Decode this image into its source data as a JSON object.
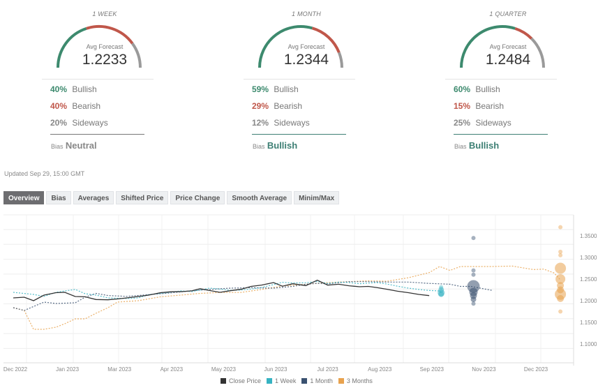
{
  "colors": {
    "bullish": "#3d8a6e",
    "bearish": "#c0574a",
    "sideways": "#9a9a9a",
    "close": "#333333",
    "week": "#36b3c2",
    "month": "#3a5170",
    "quarter": "#e8a24e"
  },
  "gauges": [
    {
      "period": "1 WEEK",
      "avg_label": "Avg Forecast",
      "avg_value": "1.2233",
      "bullish_pct": 40,
      "bearish_pct": 40,
      "sideways_pct": 20,
      "bullish_text": "40%",
      "bearish_text": "40%",
      "sideways_text": "20%",
      "bullish_label": "Bullish",
      "bearish_label": "Bearish",
      "sideways_label": "Sideways",
      "bias_label": "Bias",
      "bias_value": "Neutral",
      "bias_color": "#888888"
    },
    {
      "period": "1 MONTH",
      "avg_label": "Avg Forecast",
      "avg_value": "1.2344",
      "bullish_pct": 59,
      "bearish_pct": 29,
      "sideways_pct": 12,
      "bullish_text": "59%",
      "bearish_text": "29%",
      "sideways_text": "12%",
      "bullish_label": "Bullish",
      "bearish_label": "Bearish",
      "sideways_label": "Sideways",
      "bias_label": "Bias",
      "bias_value": "Bullish",
      "bias_color": "#3d7f74"
    },
    {
      "period": "1 QUARTER",
      "avg_label": "Avg Forecast",
      "avg_value": "1.2484",
      "bullish_pct": 60,
      "bearish_pct": 15,
      "sideways_pct": 25,
      "bullish_text": "60%",
      "bearish_text": "15%",
      "sideways_text": "25%",
      "bullish_label": "Bullish",
      "bearish_label": "Bearish",
      "sideways_label": "Sideways",
      "bias_label": "Bias",
      "bias_value": "Bullish",
      "bias_color": "#3d7f74"
    }
  ],
  "updated": "Updated Sep 29, 15:00 GMT",
  "tabs": [
    {
      "label": "Overview",
      "active": true
    },
    {
      "label": "Bias",
      "active": false
    },
    {
      "label": "Averages",
      "active": false
    },
    {
      "label": "Shifted Price",
      "active": false
    },
    {
      "label": "Price Change",
      "active": false
    },
    {
      "label": "Smooth Average",
      "active": false
    },
    {
      "label": "Minim/Max",
      "active": false
    }
  ],
  "chart_data": {
    "type": "line",
    "title": "",
    "xlabel": "",
    "ylabel": "",
    "x_ticks": [
      "Dec 2022",
      "Jan 2023",
      "Mar 2023",
      "Apr 2023",
      "May 2023",
      "Jun 2023",
      "Jul 2023",
      "Aug 2023",
      "Sep 2023",
      "Nov 2023",
      "Dec 2023"
    ],
    "y_ticks": [
      "1.1000",
      "1.1500",
      "1.2000",
      "1.2500",
      "1.3000",
      "1.3500"
    ],
    "y_tick_values": [
      1.1,
      1.15,
      1.2,
      1.25,
      1.3,
      1.35
    ],
    "ylim": [
      1.055,
      1.395
    ],
    "xlim": [
      -0.3,
      10.7
    ],
    "grid": true,
    "legend_position": "bottom",
    "legend": [
      "Close Price",
      "1 Week",
      "1 Month",
      "3 Months"
    ],
    "series": [
      {
        "name": "Close Price",
        "style": "solid",
        "color_key": "close",
        "x": [
          -0.04,
          0.17,
          0.35,
          0.55,
          0.78,
          0.95,
          1.15,
          1.34,
          1.55,
          1.78,
          1.96,
          2.14,
          2.36,
          2.56,
          2.79,
          2.99,
          3.19,
          3.39,
          3.55,
          3.73,
          3.93,
          4.13,
          4.33,
          4.53,
          4.73,
          4.96,
          5.13,
          5.33,
          5.58,
          5.8,
          6.0,
          6.21,
          6.41,
          6.61,
          6.78,
          6.94,
          7.14,
          7.34,
          7.55,
          7.75,
          7.95
        ],
        "y": [
          1.2065,
          1.2081,
          1.2,
          1.2129,
          1.2185,
          1.2194,
          1.2097,
          1.209,
          1.2027,
          1.2021,
          1.204,
          1.2065,
          1.2097,
          1.2129,
          1.2185,
          1.2206,
          1.221,
          1.2227,
          1.2277,
          1.2235,
          1.2194,
          1.2231,
          1.2263,
          1.2331,
          1.2361,
          1.242,
          1.2335,
          1.2392,
          1.2349,
          1.2474,
          1.236,
          1.238,
          1.2345,
          1.2323,
          1.233,
          1.2305,
          1.2265,
          1.222,
          1.2185,
          1.2145,
          1.2117
        ]
      },
      {
        "name": "1 Week",
        "style": "dotted",
        "color_key": "week",
        "x": [
          -0.04,
          0.35,
          0.55,
          0.78,
          1.15,
          1.34,
          1.55,
          1.78,
          2.14,
          2.36,
          2.56,
          2.79,
          3.19,
          3.39,
          3.73,
          3.93,
          4.13,
          4.33,
          4.53,
          4.73,
          5.13,
          5.33,
          5.58,
          5.8,
          6.0,
          6.21,
          6.41,
          6.61,
          6.94,
          7.14,
          7.34,
          7.55,
          7.75,
          7.95,
          8.15,
          8.18
        ],
        "y": [
          1.2194,
          1.2145,
          1.21,
          1.2194,
          1.2261,
          1.2162,
          1.2129,
          1.2065,
          1.205,
          1.2065,
          1.2138,
          1.217,
          1.2227,
          1.221,
          1.229,
          1.227,
          1.224,
          1.2247,
          1.227,
          1.2305,
          1.2424,
          1.241,
          1.2415,
          1.2444,
          1.24,
          1.2429,
          1.2419,
          1.2392,
          1.242,
          1.2385,
          1.2335,
          1.229,
          1.226,
          1.2237,
          1.2226,
          1.218
        ]
      },
      {
        "name": "1 Month",
        "style": "dotted",
        "color_key": "month",
        "x": [
          -0.04,
          0.17,
          0.55,
          0.78,
          1.15,
          1.34,
          1.55,
          1.78,
          2.14,
          2.56,
          2.99,
          3.39,
          3.73,
          4.13,
          4.53,
          4.96,
          5.33,
          5.58,
          5.8,
          6.0,
          6.41,
          6.78,
          7.14,
          7.55,
          7.95,
          8.35,
          8.55,
          8.75,
          9.15
        ],
        "y": [
          1.1839,
          1.1774,
          1.1968,
          1.1935,
          1.1952,
          1.2081,
          1.217,
          1.212,
          1.21,
          1.214,
          1.218,
          1.223,
          1.226,
          1.229,
          1.23,
          1.229,
          1.233,
          1.238,
          1.24,
          1.239,
          1.244,
          1.244,
          1.243,
          1.243,
          1.24,
          1.238,
          1.233,
          1.233,
          1.224
        ]
      },
      {
        "name": "3 Months",
        "style": "dotted",
        "color_key": "quarter",
        "x": [
          -0.04,
          0.17,
          0.35,
          0.55,
          0.78,
          0.95,
          1.15,
          1.34,
          1.55,
          1.78,
          1.96,
          2.36,
          2.79,
          3.19,
          3.55,
          3.93,
          4.33,
          4.73,
          5.13,
          5.58,
          6.0,
          6.41,
          6.78,
          7.14,
          7.55,
          7.95,
          8.15,
          8.35,
          8.55,
          8.75,
          9.15,
          9.55,
          9.95,
          10.15,
          10.35,
          10.47
        ],
        "y": [
          1.1839,
          1.1774,
          1.1339,
          1.1339,
          1.1387,
          1.1468,
          1.1581,
          1.1581,
          1.171,
          1.1839,
          1.1968,
          1.2,
          1.209,
          1.213,
          1.217,
          1.219,
          1.219,
          1.226,
          1.234,
          1.238,
          1.242,
          1.244,
          1.246,
          1.245,
          1.253,
          1.265,
          1.279,
          1.27,
          1.279,
          1.279,
          1.279,
          1.28,
          1.272,
          1.273,
          1.264,
          1.248
        ]
      }
    ],
    "forecast_points": [
      {
        "series": "1 Week",
        "color_key": "week",
        "x": 8.18,
        "values": [
          1.231,
          1.225,
          1.218,
          1.215
        ],
        "sizes": [
          3,
          4,
          5,
          4
        ]
      },
      {
        "series": "1 Month",
        "color_key": "month",
        "x": 8.8,
        "values": [
          1.345,
          1.27,
          1.26,
          1.233,
          1.22,
          1.212,
          1.203,
          1.193
        ],
        "sizes": [
          3,
          3,
          3,
          9,
          6,
          5,
          4,
          3
        ]
      },
      {
        "series": "3 Months",
        "color_key": "quarter",
        "x": 10.47,
        "values": [
          1.37,
          1.313,
          1.305,
          1.275,
          1.25,
          1.235,
          1.225,
          1.215,
          1.205,
          1.175
        ],
        "sizes": [
          3,
          3,
          3,
          8,
          7,
          5,
          5,
          8,
          5,
          3
        ]
      }
    ]
  }
}
